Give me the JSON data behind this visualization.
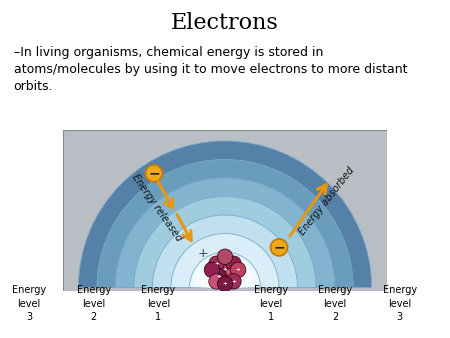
{
  "title": "Electrons",
  "subtitle": "–In living organisms, chemical energy is stored in\natoms/molecules by using it to move electrons to more distant\norbits.",
  "background_color": "#ffffff",
  "diagram_bg": "#b8bec4",
  "title_fontsize": 16,
  "subtitle_fontsize": 9,
  "arrow_color": "#e8960c",
  "energy_released_text": "Energy released",
  "energy_absorbed_text": "Energy absorbed",
  "semicircle_radii": [
    0.95,
    0.83,
    0.71,
    0.59,
    0.47,
    0.35,
    0.23,
    0.13
  ],
  "semicircle_colors": [
    "#5580a8",
    "#6a9cbc",
    "#82b4d0",
    "#a0cce0",
    "#c0e0f0",
    "#daeefa",
    "#eef8ff",
    "#f8fcff"
  ],
  "nucleus_colors": [
    "#c04060",
    "#902050",
    "#a03058",
    "#d05078",
    "#7a1840",
    "#b04868"
  ],
  "level_labels": [
    [
      "Energy",
      "level",
      "3"
    ],
    [
      "Energy",
      "level",
      "2"
    ],
    [
      "Energy",
      "level",
      "1"
    ],
    [
      "Energy",
      "level",
      "1"
    ],
    [
      "Energy",
      "level",
      "2"
    ],
    [
      "Energy",
      "level",
      "3"
    ]
  ]
}
